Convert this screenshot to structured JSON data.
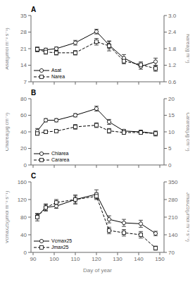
{
  "chart_data": [
    {
      "type": "line",
      "title": "A",
      "x": [
        92,
        96,
        101,
        110,
        120,
        126,
        133,
        141,
        148
      ],
      "xlim": [
        89,
        152
      ],
      "xticks": [
        90,
        100,
        110,
        120,
        130,
        140,
        150
      ],
      "ylim": [
        7,
        35
      ],
      "yticks": [
        7,
        14,
        21,
        28,
        35
      ],
      "y2lim": [
        0.6,
        3.0
      ],
      "y2ticks": [
        0.6,
        1.2,
        1.8,
        2.4,
        {
          "value": 3.0,
          "label": "3.0"
        }
      ],
      "ylabel": "Asat(μmol m⁻² s⁻¹)",
      "y2label": "Narea(g m⁻²)",
      "tick_labels": "y",
      "legend": "lower left",
      "series": [
        {
          "name": "Asat",
          "color": "black",
          "marker": "circle",
          "line_style": "solid",
          "values": [
            20.5,
            20.5,
            21.0,
            23.5,
            28.2,
            22.5,
            17.0,
            13.5,
            15.5
          ],
          "error": [
            0.8,
            0.7,
            0.7,
            1.0,
            1.0,
            1.5,
            1.5,
            1.2,
            1.5
          ]
        },
        {
          "name": "Narea",
          "color": "black",
          "marker": "square",
          "line_style": "dashed",
          "axis": "y2",
          "values": [
            1.78,
            1.68,
            1.65,
            1.65,
            2.05,
            1.9,
            1.35,
            1.22,
            1.08
          ],
          "error": [
            0.08,
            0.08,
            0.08,
            0.08,
            0.12,
            0.18,
            0.1,
            0.1,
            0.1
          ]
        }
      ]
    },
    {
      "type": "line",
      "title": "B",
      "x": [
        92,
        96,
        101,
        110,
        120,
        126,
        133,
        141,
        148
      ],
      "xlim": [
        89,
        152
      ],
      "xticks": [
        90,
        100,
        110,
        120,
        130,
        140,
        150
      ],
      "ylim": [
        0,
        80
      ],
      "yticks": [
        0,
        20,
        40,
        60,
        80
      ],
      "y2lim": [
        0,
        20
      ],
      "y2ticks": [
        0,
        5,
        10,
        15,
        20
      ],
      "ylabel": "Chlarea(μg cm⁻²)",
      "y2label": "Cararea(μg cm⁻²)",
      "tick_labels": "y",
      "legend": "lower left",
      "series": [
        {
          "name": "Chlarea",
          "color": "black",
          "marker": "circle",
          "line_style": "solid",
          "values": [
            41,
            54,
            54,
            60,
            68,
            52,
            41,
            40,
            38
          ],
          "error": [
            3,
            2,
            2,
            2,
            3,
            3,
            2,
            2,
            3
          ]
        },
        {
          "name": "Cararea",
          "color": "black",
          "marker": "square",
          "line_style": "dashed",
          "axis": "y2",
          "values": [
            9.5,
            10.0,
            10.2,
            11.5,
            12.0,
            10.3,
            9.8,
            9.8,
            9.5
          ],
          "error": [
            0.5,
            0.5,
            0.5,
            0.7,
            0.7,
            0.7,
            0.5,
            0.5,
            0.5
          ]
        }
      ]
    },
    {
      "type": "line",
      "title": "C",
      "x": [
        92,
        96,
        101,
        110,
        120,
        126,
        133,
        141,
        148
      ],
      "xlim": [
        89,
        152
      ],
      "xticks": [
        90,
        100,
        110,
        120,
        130,
        140,
        150
      ],
      "xlabel": "Day of year",
      "ylim": [
        0,
        160
      ],
      "yticks": [
        0,
        40,
        80,
        120,
        160
      ],
      "y2lim": [
        70,
        350
      ],
      "y2ticks": [
        70,
        140,
        210,
        280,
        350
      ],
      "ylabel": "Vcmax25(μmol m⁻² s⁻¹)",
      "y2label": "Jmax25(μmol m⁻² s⁻¹)",
      "legend": "lower left",
      "series": [
        {
          "name": "Vcmax25",
          "color": "black",
          "marker": "circle",
          "line_style": "solid",
          "values": [
            82,
            102,
            105,
            120,
            132,
            75,
            67,
            65,
            43
          ],
          "error": [
            5,
            8,
            5,
            8,
            10,
            8,
            8,
            8,
            5
          ]
        },
        {
          "name": "Jmax25",
          "color": "black",
          "marker": "square",
          "line_style": "dashed",
          "axis": "y2",
          "values": [
            210,
            248,
            268,
            280,
            293,
            157,
            148,
            140,
            87
          ],
          "error": [
            15,
            12,
            12,
            18,
            13,
            13,
            13,
            13,
            8
          ]
        }
      ]
    }
  ]
}
